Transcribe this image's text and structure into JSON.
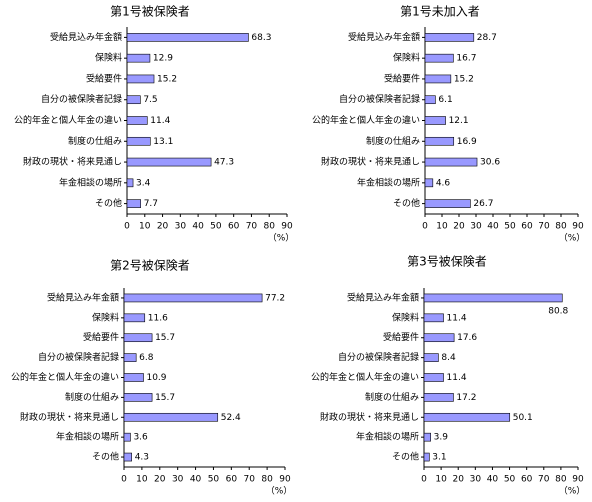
{
  "chart_data": [
    {
      "type": "bar",
      "orientation": "horizontal",
      "title": "第1号被保険者",
      "categories": [
        "受給見込み年金額",
        "保険料",
        "受給要件",
        "自分の被保険者記録",
        "公的年金と個人年金の違い",
        "制度の仕組み",
        "財政の現状・将来見通し",
        "年金相談の場所",
        "その他"
      ],
      "values": [
        68.3,
        12.9,
        15.2,
        7.5,
        11.4,
        13.1,
        47.3,
        3.4,
        7.7
      ],
      "color": "#9999ff",
      "xlim": [
        0,
        90
      ],
      "xticks": [
        0,
        10,
        20,
        30,
        40,
        50,
        60,
        70,
        80,
        90
      ],
      "x_unit_label": "（%）"
    },
    {
      "type": "bar",
      "orientation": "horizontal",
      "title": "第1号未加入者",
      "categories": [
        "受給見込み年金額",
        "保険料",
        "受給要件",
        "自分の被保険者記録",
        "公的年金と個人年金の違い",
        "制度の仕組み",
        "財政の現状・将来見通し",
        "年金相談の場所",
        "その他"
      ],
      "values": [
        28.7,
        16.7,
        15.2,
        6.1,
        12.1,
        16.9,
        30.6,
        4.6,
        26.7
      ],
      "color": "#9999ff",
      "xlim": [
        0,
        90
      ],
      "xticks": [
        0,
        10,
        20,
        30,
        40,
        50,
        60,
        70,
        80,
        90
      ],
      "x_unit_label": "（%）"
    },
    {
      "type": "bar",
      "orientation": "horizontal",
      "title": "第2号被保険者",
      "categories": [
        "受給見込み年金額",
        "保険料",
        "受給要件",
        "自分の被保険者記録",
        "公的年金と個人年金の違い",
        "制度の仕組み",
        "財政の現状・将来見通し",
        "年金相談の場所",
        "その他"
      ],
      "values": [
        77.2,
        11.6,
        15.7,
        6.8,
        10.9,
        15.7,
        52.4,
        3.6,
        4.3
      ],
      "color": "#9999ff",
      "xlim": [
        0,
        90
      ],
      "xticks": [
        0,
        10,
        20,
        30,
        40,
        50,
        60,
        70,
        80,
        90
      ],
      "x_unit_label": "（%）"
    },
    {
      "type": "bar",
      "orientation": "horizontal",
      "title": "第3号被保険者",
      "categories": [
        "受給見込み年金額",
        "保険料",
        "受給要件",
        "自分の被保険者記録",
        "公的年金と個人年金の違い",
        "制度の仕組み",
        "財政の現状・将来見通し",
        "年金相談の場所",
        "その他"
      ],
      "values": [
        80.8,
        11.4,
        17.6,
        8.4,
        11.4,
        17.2,
        50.1,
        3.9,
        3.1
      ],
      "color": "#9999ff",
      "xlim": [
        0,
        90
      ],
      "xticks": [
        0,
        10,
        20,
        30,
        40,
        50,
        60,
        70,
        80,
        90
      ],
      "x_unit_label": "（%）"
    }
  ]
}
